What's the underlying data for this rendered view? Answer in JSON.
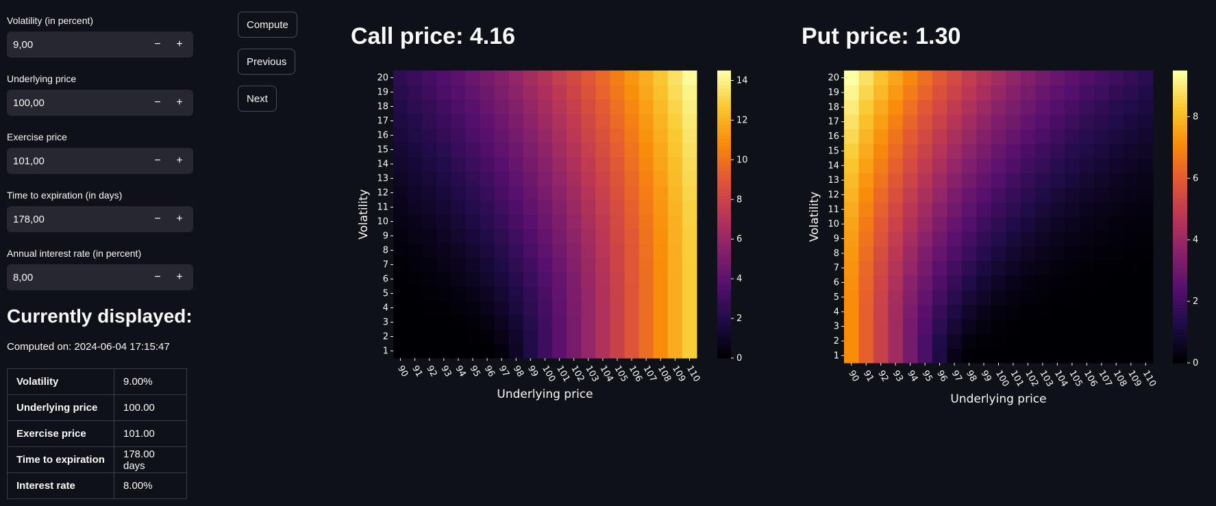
{
  "sidebar": {
    "fields": [
      {
        "label": "Volatility (in percent)",
        "value": "9,00"
      },
      {
        "label": "Underlying price",
        "value": "100,00"
      },
      {
        "label": "Exercise price",
        "value": "101,00"
      },
      {
        "label": "Time to expiration (in days)",
        "value": "178,00"
      },
      {
        "label": "Annual interest rate (in percent)",
        "value": "8,00"
      }
    ],
    "minus_glyph": "−",
    "plus_glyph": "+",
    "current_heading": "Currently displayed:",
    "computed_on": "Computed on: 2024-06-04 17:15:47",
    "summary": [
      {
        "key": "Volatility",
        "value": "9.00%"
      },
      {
        "key": "Underlying price",
        "value": "100.00"
      },
      {
        "key": "Exercise price",
        "value": "101.00"
      },
      {
        "key": "Time to expiration",
        "value": "178.00 days"
      },
      {
        "key": "Interest rate",
        "value": "8.00%"
      }
    ]
  },
  "buttons": {
    "compute": "Compute",
    "previous": "Previous",
    "next": "Next"
  },
  "call_title": "Call price: 4.16",
  "put_title": "Put price: 1.30",
  "chart_data": [
    {
      "type": "heatmap",
      "title": "",
      "xlabel": "Underlying price",
      "ylabel": "Volatility",
      "x": [
        90,
        91,
        92,
        93,
        94,
        95,
        96,
        97,
        98,
        99,
        100,
        101,
        102,
        103,
        104,
        105,
        106,
        107,
        108,
        109,
        110
      ],
      "y": [
        1,
        2,
        3,
        4,
        5,
        6,
        7,
        8,
        9,
        10,
        11,
        12,
        13,
        14,
        15,
        16,
        17,
        18,
        19,
        20
      ],
      "colorbar_ticks": [
        0,
        2,
        4,
        6,
        8,
        10,
        12,
        14
      ],
      "vmin": 0,
      "vmax": 14.5,
      "model": {
        "option": "call",
        "strike": 101,
        "days": 178,
        "rate_percent": 8
      }
    },
    {
      "type": "heatmap",
      "title": "",
      "xlabel": "Underlying price",
      "ylabel": "Volatility",
      "x": [
        90,
        91,
        92,
        93,
        94,
        95,
        96,
        97,
        98,
        99,
        100,
        101,
        102,
        103,
        104,
        105,
        106,
        107,
        108,
        109,
        110
      ],
      "y": [
        1,
        2,
        3,
        4,
        5,
        6,
        7,
        8,
        9,
        10,
        11,
        12,
        13,
        14,
        15,
        16,
        17,
        18,
        19,
        20
      ],
      "colorbar_ticks": [
        0,
        2,
        4,
        6,
        8
      ],
      "vmin": 0,
      "vmax": 9.5,
      "model": {
        "option": "put",
        "strike": 101,
        "days": 178,
        "rate_percent": 8
      }
    }
  ]
}
